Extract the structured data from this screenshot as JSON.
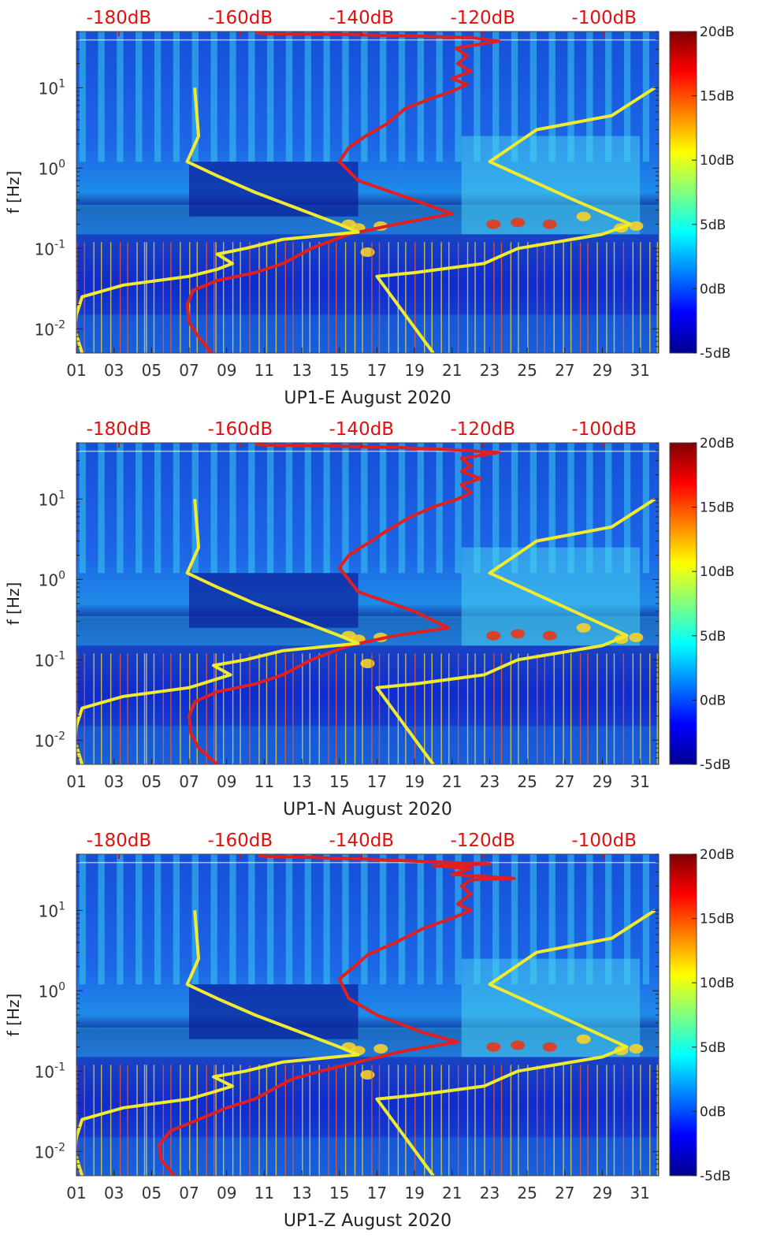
{
  "chart_data": [
    {
      "type": "heatmap",
      "title": "",
      "xlabel": "UP1-E August 2020",
      "ylabel": "f [Hz]",
      "x_ticks": [
        "01",
        "03",
        "05",
        "07",
        "09",
        "11",
        "13",
        "15",
        "17",
        "19",
        "21",
        "23",
        "25",
        "27",
        "29",
        "31"
      ],
      "xlim": [
        1,
        32
      ],
      "y_scale": "log",
      "ylim": [
        0.005,
        50
      ],
      "y_ticks": [
        {
          "value": 0.01,
          "base": "10",
          "exp": "-2"
        },
        {
          "value": 0.1,
          "base": "10",
          "exp": "-1"
        },
        {
          "value": 1,
          "base": "10",
          "exp": "0"
        },
        {
          "value": 10,
          "base": "10",
          "exp": "1"
        }
      ],
      "top_axis_ticks": [
        "-180dB",
        "-160dB",
        "-140dB",
        "-120dB",
        "-100dB"
      ],
      "top_axis_range_db": [
        -187,
        -91
      ],
      "colorbar": {
        "labels": [
          "20dB",
          "15dB",
          "10dB",
          "5dB",
          "0dB",
          "-5dB"
        ],
        "range": [
          -5,
          20
        ],
        "colormap": "jet"
      },
      "series": [
        {
          "color": "#e02020",
          "points": [
            [
              8.2,
              0.005
            ],
            [
              7.5,
              0.008
            ],
            [
              7,
              0.012
            ],
            [
              6.9,
              0.02
            ],
            [
              7.2,
              0.03
            ],
            [
              8.5,
              0.04
            ],
            [
              10.5,
              0.05
            ],
            [
              12,
              0.065
            ],
            [
              13.5,
              0.1
            ],
            [
              15.5,
              0.15
            ],
            [
              18,
              0.2
            ],
            [
              21,
              0.27
            ],
            [
              19,
              0.4
            ],
            [
              16,
              0.7
            ],
            [
              15,
              1.2
            ],
            [
              15.5,
              1.8
            ],
            [
              16.5,
              2.6
            ],
            [
              17.5,
              3.5
            ],
            [
              18.5,
              5.5
            ],
            [
              20,
              7.5
            ],
            [
              21,
              9
            ],
            [
              21.8,
              11
            ],
            [
              21,
              13
            ],
            [
              22,
              16
            ],
            [
              21.3,
              20
            ],
            [
              21.8,
              25
            ],
            [
              21.2,
              31
            ],
            [
              23.5,
              38
            ],
            [
              22,
              42
            ],
            [
              19,
              44
            ],
            [
              15,
              46
            ],
            [
              11,
              47
            ],
            [
              10.5,
              48
            ]
          ]
        },
        {
          "color": "#f0ea30",
          "points": [
            [
              1.3,
              0.005
            ],
            [
              0.9,
              0.01
            ],
            [
              1,
              0.015
            ],
            [
              1.3,
              0.025
            ],
            [
              3.5,
              0.035
            ],
            [
              7,
              0.045
            ],
            [
              8.5,
              0.055
            ],
            [
              9.3,
              0.065
            ],
            [
              8.5,
              0.085
            ],
            [
              10,
              0.1
            ],
            [
              12,
              0.13
            ],
            [
              16,
              0.16
            ],
            [
              15,
              0.2
            ],
            [
              13,
              0.3
            ],
            [
              10.5,
              0.5
            ],
            [
              8.5,
              0.8
            ],
            [
              6.9,
              1.2
            ],
            [
              7.5,
              2.5
            ],
            [
              7.4,
              5
            ],
            [
              7.3,
              10
            ]
          ]
        },
        {
          "color": "#f0ea30",
          "points": [
            [
              20,
              0.005
            ],
            [
              17,
              0.045
            ],
            [
              19,
              0.05
            ],
            [
              22.7,
              0.065
            ],
            [
              24.5,
              0.1
            ],
            [
              29,
              0.15
            ],
            [
              30.5,
              0.2
            ],
            [
              27.5,
              0.4
            ],
            [
              23,
              1.2
            ],
            [
              25.5,
              3
            ],
            [
              29.5,
              4.5
            ],
            [
              31.8,
              10
            ]
          ]
        }
      ]
    },
    {
      "type": "heatmap",
      "title": "",
      "xlabel": "UP1-N August 2020",
      "ylabel": "f [Hz]",
      "x_ticks": [
        "01",
        "03",
        "05",
        "07",
        "09",
        "11",
        "13",
        "15",
        "17",
        "19",
        "21",
        "23",
        "25",
        "27",
        "29",
        "31"
      ],
      "xlim": [
        1,
        32
      ],
      "y_scale": "log",
      "ylim": [
        0.005,
        50
      ],
      "y_ticks": [
        {
          "value": 0.01,
          "base": "10",
          "exp": "-2"
        },
        {
          "value": 0.1,
          "base": "10",
          "exp": "-1"
        },
        {
          "value": 1,
          "base": "10",
          "exp": "0"
        },
        {
          "value": 10,
          "base": "10",
          "exp": "1"
        }
      ],
      "top_axis_ticks": [
        "-180dB",
        "-160dB",
        "-140dB",
        "-120dB",
        "-100dB"
      ],
      "top_axis_range_db": [
        -187,
        -91
      ],
      "colorbar": {
        "labels": [
          "20dB",
          "15dB",
          "10dB",
          "5dB",
          "0dB",
          "-5dB"
        ],
        "range": [
          -5,
          20
        ],
        "colormap": "jet"
      },
      "series": [
        {
          "color": "#e02020",
          "points": [
            [
              8.5,
              0.005
            ],
            [
              7.5,
              0.008
            ],
            [
              7.1,
              0.012
            ],
            [
              7,
              0.02
            ],
            [
              7.3,
              0.03
            ],
            [
              8.5,
              0.04
            ],
            [
              10.5,
              0.05
            ],
            [
              12,
              0.065
            ],
            [
              13.5,
              0.1
            ],
            [
              15.5,
              0.15
            ],
            [
              18,
              0.2
            ],
            [
              20.8,
              0.25
            ],
            [
              19,
              0.4
            ],
            [
              16,
              0.7
            ],
            [
              15,
              1.4
            ],
            [
              15.5,
              2
            ],
            [
              16.5,
              2.8
            ],
            [
              17.5,
              4
            ],
            [
              18.8,
              6
            ],
            [
              20,
              8
            ],
            [
              21.3,
              10
            ],
            [
              22,
              12
            ],
            [
              21.5,
              15
            ],
            [
              22.5,
              18
            ],
            [
              21.5,
              22
            ],
            [
              22,
              26
            ],
            [
              21.5,
              32
            ],
            [
              23.5,
              38
            ],
            [
              21,
              41
            ],
            [
              18,
              44
            ],
            [
              14,
              46
            ],
            [
              11,
              47
            ],
            [
              10.5,
              48
            ]
          ]
        },
        {
          "color": "#f0ea30",
          "points": [
            [
              1.3,
              0.005
            ],
            [
              0.9,
              0.01
            ],
            [
              1,
              0.015
            ],
            [
              1.3,
              0.025
            ],
            [
              3.5,
              0.035
            ],
            [
              7,
              0.045
            ],
            [
              8.2,
              0.055
            ],
            [
              9.2,
              0.065
            ],
            [
              8.3,
              0.085
            ],
            [
              10,
              0.1
            ],
            [
              12,
              0.13
            ],
            [
              16,
              0.16
            ],
            [
              15,
              0.2
            ],
            [
              13,
              0.3
            ],
            [
              10.5,
              0.5
            ],
            [
              8.5,
              0.8
            ],
            [
              6.9,
              1.2
            ],
            [
              7.5,
              2.5
            ],
            [
              7.4,
              5
            ],
            [
              7.3,
              10
            ]
          ]
        },
        {
          "color": "#f0ea30",
          "points": [
            [
              20,
              0.005
            ],
            [
              17,
              0.045
            ],
            [
              19,
              0.05
            ],
            [
              22.7,
              0.065
            ],
            [
              24.5,
              0.1
            ],
            [
              29,
              0.15
            ],
            [
              30.3,
              0.2
            ],
            [
              27.5,
              0.4
            ],
            [
              23,
              1.2
            ],
            [
              25.5,
              3
            ],
            [
              29.5,
              4.5
            ],
            [
              31.8,
              10
            ]
          ]
        }
      ]
    },
    {
      "type": "heatmap",
      "title": "",
      "xlabel": "UP1-Z August 2020",
      "ylabel": "f [Hz]",
      "x_ticks": [
        "01",
        "03",
        "05",
        "07",
        "09",
        "11",
        "13",
        "15",
        "17",
        "19",
        "21",
        "23",
        "25",
        "27",
        "29",
        "31"
      ],
      "xlim": [
        1,
        32
      ],
      "y_scale": "log",
      "ylim": [
        0.005,
        50
      ],
      "y_ticks": [
        {
          "value": 0.01,
          "base": "10",
          "exp": "-2"
        },
        {
          "value": 0.1,
          "base": "10",
          "exp": "-1"
        },
        {
          "value": 1,
          "base": "10",
          "exp": "0"
        },
        {
          "value": 10,
          "base": "10",
          "exp": "1"
        }
      ],
      "top_axis_ticks": [
        "-180dB",
        "-160dB",
        "-140dB",
        "-120dB",
        "-100dB"
      ],
      "top_axis_range_db": [
        -187,
        -91
      ],
      "colorbar": {
        "labels": [
          "20dB",
          "15dB",
          "10dB",
          "5dB",
          "0dB",
          "-5dB"
        ],
        "range": [
          -5,
          20
        ],
        "colormap": "jet"
      },
      "series": [
        {
          "color": "#e02020",
          "points": [
            [
              6.2,
              0.005
            ],
            [
              5.5,
              0.008
            ],
            [
              5.4,
              0.012
            ],
            [
              6,
              0.018
            ],
            [
              7.5,
              0.025
            ],
            [
              9,
              0.035
            ],
            [
              10.5,
              0.045
            ],
            [
              11.5,
              0.06
            ],
            [
              12.5,
              0.08
            ],
            [
              14,
              0.1
            ],
            [
              16,
              0.13
            ],
            [
              18.5,
              0.18
            ],
            [
              21.3,
              0.23
            ],
            [
              19.5,
              0.3
            ],
            [
              17,
              0.5
            ],
            [
              15.5,
              0.8
            ],
            [
              15,
              1.4
            ],
            [
              15.8,
              2
            ],
            [
              16.5,
              2.8
            ],
            [
              18,
              4
            ],
            [
              19.5,
              6
            ],
            [
              21,
              8
            ],
            [
              22,
              10
            ],
            [
              21.3,
              12
            ],
            [
              22,
              16
            ],
            [
              21.5,
              20
            ],
            [
              22,
              24
            ],
            [
              24.3,
              25
            ],
            [
              21,
              28
            ],
            [
              22,
              33
            ],
            [
              20,
              36
            ],
            [
              23,
              38
            ],
            [
              20,
              40
            ],
            [
              17,
              43
            ],
            [
              13,
              46
            ],
            [
              11,
              47
            ],
            [
              10.7,
              48
            ]
          ]
        },
        {
          "color": "#f0ea30",
          "points": [
            [
              1.3,
              0.005
            ],
            [
              0.9,
              0.01
            ],
            [
              1,
              0.015
            ],
            [
              1.3,
              0.025
            ],
            [
              3.5,
              0.035
            ],
            [
              7,
              0.045
            ],
            [
              8.3,
              0.055
            ],
            [
              9.3,
              0.065
            ],
            [
              8.3,
              0.085
            ],
            [
              10,
              0.1
            ],
            [
              12,
              0.13
            ],
            [
              16,
              0.16
            ],
            [
              15,
              0.2
            ],
            [
              13,
              0.3
            ],
            [
              10.5,
              0.5
            ],
            [
              8.5,
              0.8
            ],
            [
              6.9,
              1.2
            ],
            [
              7.5,
              2.5
            ],
            [
              7.4,
              5
            ],
            [
              7.3,
              10
            ]
          ]
        },
        {
          "color": "#f0ea30",
          "points": [
            [
              20,
              0.005
            ],
            [
              17,
              0.045
            ],
            [
              19,
              0.05
            ],
            [
              22.7,
              0.065
            ],
            [
              24.5,
              0.1
            ],
            [
              29,
              0.15
            ],
            [
              30.3,
              0.2
            ],
            [
              27.5,
              0.4
            ],
            [
              23,
              1.2
            ],
            [
              25.5,
              3
            ],
            [
              29.5,
              4.5
            ],
            [
              31.8,
              10
            ]
          ]
        }
      ]
    }
  ]
}
